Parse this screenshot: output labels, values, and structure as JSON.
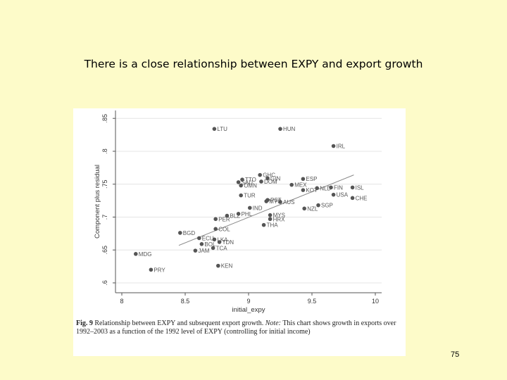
{
  "slide": {
    "title": "There is a close relationship between EXPY and export growth",
    "page_number": "75"
  },
  "caption": {
    "fig_label": "Fig. 9",
    "main": "Relationship between EXPY and subsequent export growth.",
    "note_label": "Note:",
    "note": "This chart shows growth in exports over 1992–2003 as a function of the 1992 level of EXPY (controlling for initial income)"
  },
  "chart_data": {
    "type": "scatter",
    "title": "",
    "xlabel": "initial_expy",
    "ylabel": "Component plus residual",
    "xlim": [
      7.95,
      10.05
    ],
    "ylim": [
      0.585,
      0.862
    ],
    "xticks": [
      8,
      8.5,
      9,
      9.5,
      10
    ],
    "xtick_labels": [
      "8",
      "8.5",
      "9",
      "9.5",
      "10"
    ],
    "yticks": [
      0.6,
      0.65,
      0.7,
      0.75,
      0.8,
      0.85
    ],
    "ytick_labels": [
      ".6",
      ".65",
      ".7",
      ".75",
      ".8",
      ".85"
    ],
    "grid": "horizontal",
    "marker_color": "#555555",
    "fit_line_color": "#888888",
    "fit_line": {
      "x": [
        8.45,
        9.83
      ],
      "y": [
        0.657,
        0.764
      ]
    },
    "points": [
      {
        "label": "LTU",
        "x": 8.73,
        "y": 0.834
      },
      {
        "label": "HUN",
        "x": 9.25,
        "y": 0.834
      },
      {
        "label": "IRL",
        "x": 9.67,
        "y": 0.808
      },
      {
        "label": "GHC",
        "x": 9.09,
        "y": 0.764
      },
      {
        "label": "GIN",
        "x": 9.15,
        "y": 0.759
      },
      {
        "label": "ESP",
        "x": 9.43,
        "y": 0.758
      },
      {
        "label": "TTO",
        "x": 8.95,
        "y": 0.757
      },
      {
        "label": "SAU",
        "x": 8.92,
        "y": 0.753
      },
      {
        "label": "DOM",
        "x": 9.1,
        "y": 0.754
      },
      {
        "label": "OMN",
        "x": 8.94,
        "y": 0.748
      },
      {
        "label": "MEX",
        "x": 9.34,
        "y": 0.749
      },
      {
        "label": "ISL",
        "x": 9.82,
        "y": 0.745
      },
      {
        "label": "NLD",
        "x": 9.54,
        "y": 0.744
      },
      {
        "label": "FIN",
        "x": 9.65,
        "y": 0.745
      },
      {
        "label": "KOT",
        "x": 9.43,
        "y": 0.741
      },
      {
        "label": "USA",
        "x": 9.67,
        "y": 0.734
      },
      {
        "label": "CHE",
        "x": 9.82,
        "y": 0.729
      },
      {
        "label": "TUR",
        "x": 8.94,
        "y": 0.733
      },
      {
        "label": "PST",
        "x": 9.15,
        "y": 0.726
      },
      {
        "label": "MYS",
        "x": 9.14,
        "y": 0.724
      },
      {
        "label": "AUS",
        "x": 9.25,
        "y": 0.723
      },
      {
        "label": "SGP",
        "x": 9.55,
        "y": 0.718
      },
      {
        "label": "NZL",
        "x": 9.44,
        "y": 0.713
      },
      {
        "label": "IND",
        "x": 9.01,
        "y": 0.714
      },
      {
        "label": "PHL",
        "x": 8.92,
        "y": 0.705
      },
      {
        "label": "BLZ",
        "x": 8.83,
        "y": 0.702
      },
      {
        "label": "PER",
        "x": 8.74,
        "y": 0.697
      },
      {
        "label": "MYS",
        "x": 9.17,
        "y": 0.703
      },
      {
        "label": "HRX",
        "x": 9.17,
        "y": 0.697
      },
      {
        "label": "THA",
        "x": 9.12,
        "y": 0.688
      },
      {
        "label": "COL",
        "x": 8.74,
        "y": 0.682
      },
      {
        "label": "BGD",
        "x": 8.46,
        "y": 0.676
      },
      {
        "label": "ECU",
        "x": 8.61,
        "y": 0.668
      },
      {
        "label": "LKA",
        "x": 8.73,
        "y": 0.666
      },
      {
        "label": "TDN",
        "x": 8.77,
        "y": 0.662
      },
      {
        "label": "BOL",
        "x": 8.63,
        "y": 0.659
      },
      {
        "label": "TCA",
        "x": 8.72,
        "y": 0.653
      },
      {
        "label": "JAM",
        "x": 8.58,
        "y": 0.649
      },
      {
        "label": "MDG",
        "x": 8.11,
        "y": 0.644
      },
      {
        "label": "KEN",
        "x": 8.76,
        "y": 0.626
      },
      {
        "label": "PRY",
        "x": 8.23,
        "y": 0.62
      }
    ]
  }
}
